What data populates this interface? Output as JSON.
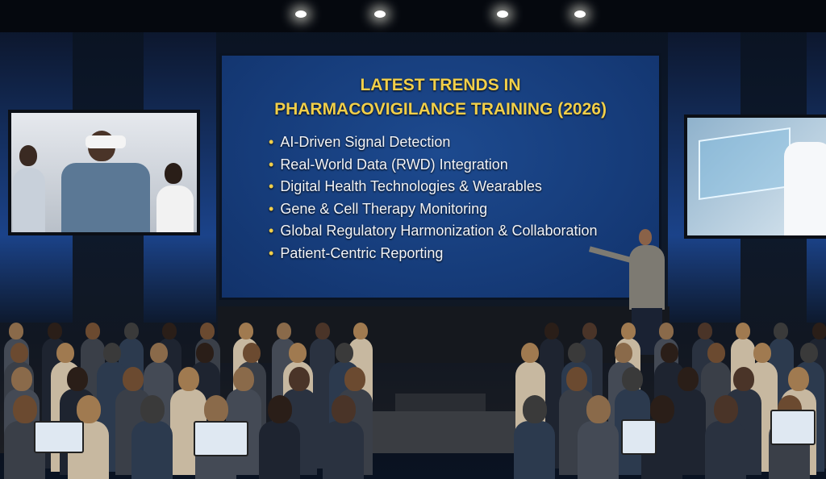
{
  "slide": {
    "title_line1": "LATEST TRENDS IN",
    "title_line2": "PHARMACOVIGILANCE TRAINING (2026)",
    "bullets": [
      "AI-Driven Signal Detection",
      "Real-World Data (RWD) Integration",
      "Digital Health Technologies & Wearables",
      "Gene & Cell Therapy Monitoring",
      "Global Regulatory Harmonization & Collaboration",
      "Patient-Centric Reporting"
    ]
  },
  "colors": {
    "slide_bg": "#163c7a",
    "title": "#f1cf4a",
    "bullet_text": "#f2f4f8"
  }
}
